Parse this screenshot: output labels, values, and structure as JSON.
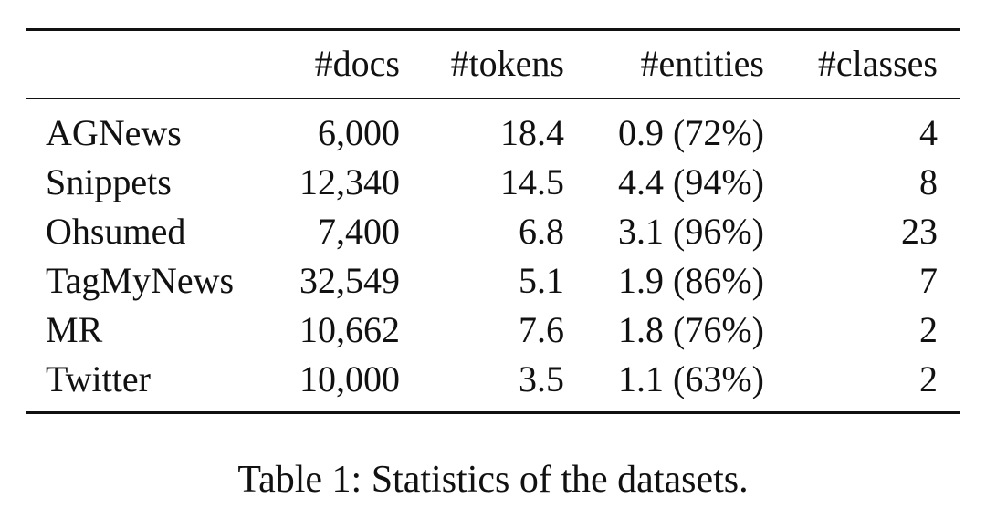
{
  "table": {
    "headers": [
      "",
      "#docs",
      "#tokens",
      "#entities",
      "#classes"
    ],
    "rows": [
      {
        "name": "AGNews",
        "docs": "6,000",
        "tokens": "18.4",
        "entities": "0.9 (72%)",
        "classes": "4"
      },
      {
        "name": "Snippets",
        "docs": "12,340",
        "tokens": "14.5",
        "entities": "4.4 (94%)",
        "classes": "8"
      },
      {
        "name": "Ohsumed",
        "docs": "7,400",
        "tokens": "6.8",
        "entities": "3.1 (96%)",
        "classes": "23"
      },
      {
        "name": "TagMyNews",
        "docs": "32,549",
        "tokens": "5.1",
        "entities": "1.9 (86%)",
        "classes": "7"
      },
      {
        "name": "MR",
        "docs": "10,662",
        "tokens": "7.6",
        "entities": "1.8 (76%)",
        "classes": "2"
      },
      {
        "name": "Twitter",
        "docs": "10,000",
        "tokens": "3.5",
        "entities": "1.1 (63%)",
        "classes": "2"
      }
    ]
  },
  "caption": "Table 1: Statistics of the datasets."
}
